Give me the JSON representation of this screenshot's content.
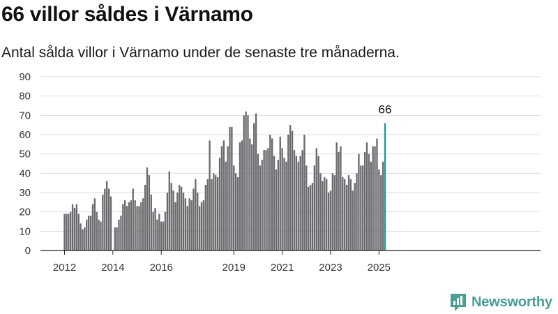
{
  "header": {
    "title": "66 villor såldes i Värnamo",
    "subtitle": "Antal sålda villor i Värnamo under de senaste tre månaderna."
  },
  "brand": {
    "name": "Newsworthy",
    "icon": "newsworthy-logo-icon"
  },
  "colors": {
    "bar": "#6b6a6f",
    "highlight": "#1a9d96",
    "grid": "#dddddd",
    "axis": "#222222",
    "brand": "#4a9e96"
  },
  "chart_data": {
    "type": "bar",
    "start": "2012-01",
    "frequency": "monthly",
    "x_tick_labels": [
      "2012",
      "2014",
      "2016",
      "2019",
      "2021",
      "2023",
      "2025"
    ],
    "y_ticks": [
      0,
      10,
      20,
      30,
      40,
      50,
      60,
      70,
      80,
      90
    ],
    "ylim": [
      0,
      90
    ],
    "grid": true,
    "highlight_label": "66",
    "highlight_index": 159,
    "values": [
      19,
      19,
      19,
      20,
      24,
      22,
      24,
      19,
      14,
      11,
      12,
      16,
      18,
      18,
      24,
      27,
      20,
      16,
      15,
      29,
      32,
      36,
      32,
      28,
      0,
      12,
      12,
      16,
      18,
      24,
      26,
      23,
      25,
      26,
      32,
      26,
      23,
      23,
      25,
      27,
      34,
      43,
      39,
      29,
      20,
      22,
      16,
      19,
      15,
      15,
      20,
      30,
      41,
      35,
      31,
      25,
      30,
      34,
      33,
      30,
      27,
      23,
      27,
      26,
      32,
      37,
      30,
      23,
      25,
      26,
      34,
      37,
      57,
      37,
      40,
      39,
      38,
      48,
      54,
      57,
      46,
      54,
      64,
      64,
      44,
      40,
      38,
      56,
      57,
      70,
      72,
      70,
      58,
      55,
      66,
      71,
      50,
      44,
      47,
      52,
      52,
      53,
      60,
      58,
      49,
      42,
      47,
      59,
      53,
      48,
      46,
      60,
      65,
      62,
      52,
      49,
      46,
      49,
      52,
      60,
      44,
      33,
      34,
      35,
      44,
      53,
      49,
      40,
      36,
      38,
      37,
      30,
      31,
      40,
      39,
      56,
      51,
      54,
      38,
      37,
      34,
      39,
      37,
      31,
      35,
      40,
      50,
      44,
      44,
      51,
      56,
      50,
      46,
      54,
      54,
      58,
      42,
      39,
      46,
      66
    ]
  }
}
